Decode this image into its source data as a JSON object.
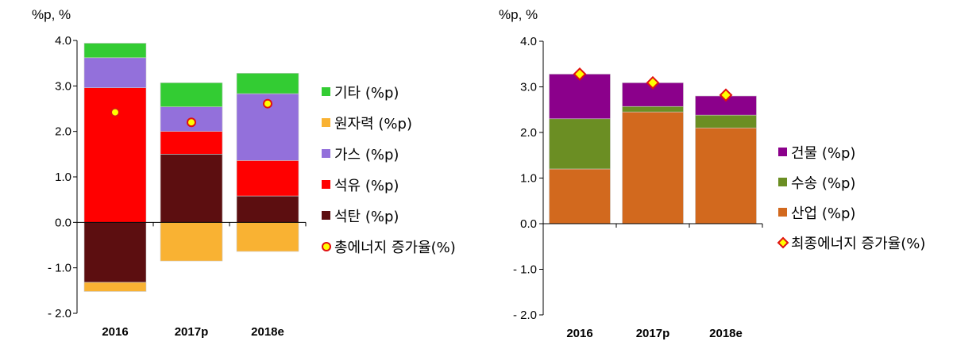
{
  "chart_data": [
    {
      "type": "bar",
      "stacked": true,
      "ylabel": "%p, %",
      "ylim": [
        -2.0,
        4.0
      ],
      "yticks": [
        "4.0",
        "3.0",
        "2.0",
        "1.0",
        "0.0",
        "- 1.0",
        "- 2.0"
      ],
      "categories": [
        "2016",
        "2017p",
        "2018e"
      ],
      "series": [
        {
          "name": "석탄 (%p)",
          "color": "#5c0e10",
          "values": [
            -1.32,
            1.5,
            0.58
          ]
        },
        {
          "name": "석유 (%p)",
          "color": "#ff0000",
          "values": [
            2.96,
            0.5,
            0.78
          ]
        },
        {
          "name": "가스 (%p)",
          "color": "#9370db",
          "values": [
            0.66,
            0.54,
            1.47
          ]
        },
        {
          "name": "원자력 (%p)",
          "color": "#f9b233",
          "values": [
            -0.2,
            -0.85,
            -0.64
          ]
        },
        {
          "name": "기타 (%p)",
          "color": "#33cc33",
          "values": [
            0.32,
            0.53,
            0.45
          ]
        }
      ],
      "markers": {
        "name": "총에너지 증가율(%)",
        "values": [
          2.42,
          2.2,
          2.61
        ]
      },
      "legend_order": [
        "기타 (%p)",
        "원자력 (%p)",
        "가스 (%p)",
        "석유 (%p)",
        "석탄 (%p)",
        "총에너지 증가율(%)"
      ],
      "legend": "right"
    },
    {
      "type": "bar",
      "stacked": true,
      "ylabel": "%p, %",
      "ylim": [
        -2.0,
        4.0
      ],
      "yticks": [
        "4.0",
        "3.0",
        "2.0",
        "1.0",
        "0.0",
        "- 1.0",
        "- 2.0"
      ],
      "categories": [
        "2016",
        "2017p",
        "2018e"
      ],
      "series": [
        {
          "name": "산업 (%p)",
          "color": "#d2691e",
          "values": [
            1.2,
            2.45,
            2.1
          ]
        },
        {
          "name": "수송 (%p)",
          "color": "#6b8e23",
          "values": [
            1.1,
            0.12,
            0.28
          ]
        },
        {
          "name": "건물 (%p)",
          "color": "#8b008b",
          "values": [
            0.98,
            0.52,
            0.42
          ]
        }
      ],
      "markers": {
        "name": "최종에너지 증가율(%)",
        "values": [
          3.28,
          3.09,
          2.82
        ]
      },
      "legend_order": [
        "건물 (%p)",
        "수송 (%p)",
        "산업 (%p)",
        "최종에너지 증가율(%)"
      ],
      "legend": "right"
    }
  ]
}
